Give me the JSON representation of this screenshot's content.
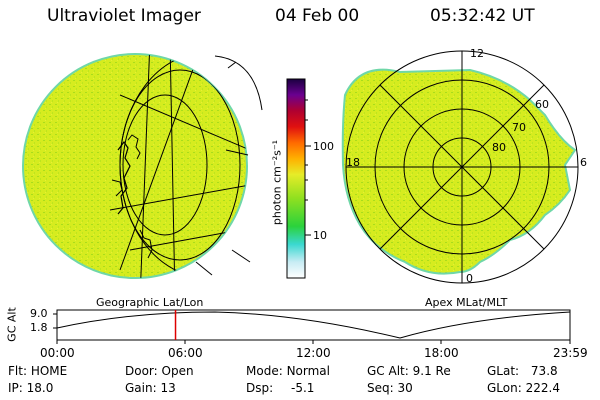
{
  "header": {
    "title": "Ultraviolet Imager",
    "date": "04 Feb 00",
    "time": "05:32:42 UT"
  },
  "geo_panel": {
    "label": "Geographic Lat/Lon"
  },
  "polar_panel": {
    "label": "Apex MLat/MLT",
    "lat_labels": [
      "80",
      "70",
      "60"
    ],
    "mlt_labels": {
      "top": "12",
      "left": "18",
      "right": "6",
      "bottom": "0"
    }
  },
  "colorbar": {
    "unit_label": "photon cm⁻²s⁻¹",
    "ticks": [
      "100",
      "10"
    ]
  },
  "timeline": {
    "ylabel": "GC Alt",
    "y_ticks": [
      "9.0",
      "1.8"
    ],
    "x_ticks": [
      "00:00",
      "06:00",
      "12:00",
      "18:00",
      "23:59"
    ],
    "current_time_hours": 5.545,
    "marker_color": "#dd0000"
  },
  "info": {
    "row1": [
      {
        "label": "Flt:",
        "value": "HOME"
      },
      {
        "label": "Door:",
        "value": "Open"
      },
      {
        "label": "Mode:",
        "value": "Normal"
      },
      {
        "label": "GC Alt:",
        "value": "9.1 Re"
      },
      {
        "label": "GLat:",
        "value": "73.8"
      }
    ],
    "row2": [
      {
        "label": "IP:",
        "value": "18.0"
      },
      {
        "label": "Gain:",
        "value": "13"
      },
      {
        "label": "Dsp:",
        "value": "-5.1"
      },
      {
        "label": "Seq:",
        "value": "30"
      },
      {
        "label": "GLon:",
        "value": "222.4"
      }
    ]
  },
  "colors": {
    "image_fill": "#d6ec1f",
    "image_speckle": "#9fd81a",
    "image_edge": "#6fd7a8"
  }
}
